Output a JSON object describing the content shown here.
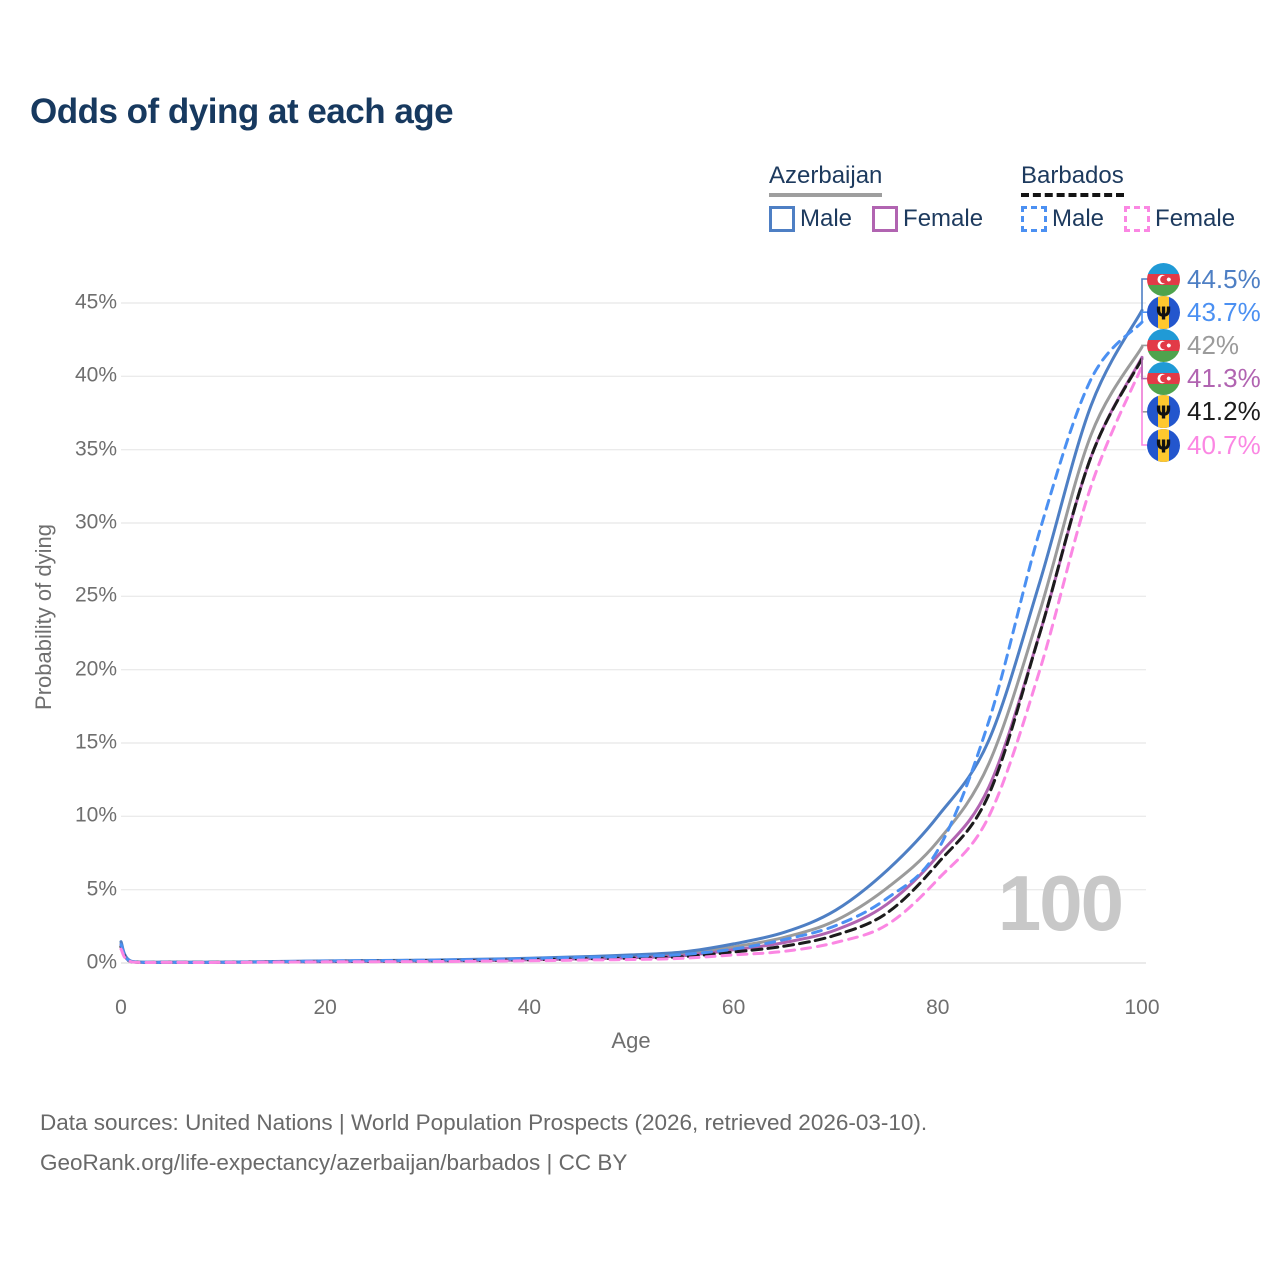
{
  "title": "Odds of dying at each age",
  "watermark": "100",
  "legend": {
    "groups": [
      {
        "label": "Azerbaijan",
        "underline": {
          "color": "#9e9e9e",
          "style": "solid"
        },
        "items": [
          {
            "label": "Male",
            "color": "#4e7fc4",
            "dashed": false
          },
          {
            "label": "Female",
            "color": "#b164b1",
            "dashed": false
          }
        ]
      },
      {
        "label": "Barbados",
        "underline": {
          "color": "#141414",
          "style": "dashed"
        },
        "items": [
          {
            "label": "Male",
            "color": "#4b90f2",
            "dashed": true
          },
          {
            "label": "Female",
            "color": "#fb87e3",
            "dashed": true
          }
        ]
      }
    ]
  },
  "chart_data": {
    "type": "line",
    "title": "Odds of dying at each age",
    "xlabel": "Age",
    "ylabel": "Probability of dying",
    "xlim": [
      0,
      100
    ],
    "ylim": [
      0,
      47.5
    ],
    "grid": true,
    "x_ticks": [
      0,
      20,
      40,
      60,
      80,
      100
    ],
    "y_tick_values": [
      0,
      5,
      10,
      15,
      20,
      25,
      30,
      35,
      40,
      45
    ],
    "y_tick_labels": [
      "0%",
      "5%",
      "10%",
      "15%",
      "20%",
      "25%",
      "30%",
      "35%",
      "40%",
      "45%"
    ],
    "x": [
      0,
      1,
      5,
      10,
      15,
      20,
      25,
      30,
      35,
      40,
      45,
      50,
      55,
      60,
      65,
      70,
      75,
      80,
      85,
      90,
      95,
      100
    ],
    "series": [
      {
        "id": "azerbaijan-total",
        "name": "Azerbaijan",
        "country": "Azerbaijan",
        "sex": "Both",
        "color": "#9b9b9b",
        "dashed": false,
        "values": [
          1.35,
          0.1,
          0.05,
          0.05,
          0.08,
          0.11,
          0.14,
          0.16,
          0.2,
          0.26,
          0.34,
          0.45,
          0.62,
          1.1,
          1.75,
          2.9,
          5.1,
          8.3,
          13.6,
          24.0,
          36.0,
          42.0
        ],
        "end_value": "42%"
      },
      {
        "id": "azerbaijan-female",
        "name": "Azerbaijan Female",
        "country": "Azerbaijan",
        "sex": "Female",
        "color": "#b164b1",
        "dashed": false,
        "values": [
          1.2,
          0.09,
          0.05,
          0.05,
          0.07,
          0.09,
          0.11,
          0.13,
          0.16,
          0.21,
          0.28,
          0.36,
          0.5,
          0.9,
          1.4,
          2.25,
          4.0,
          7.3,
          12.0,
          22.5,
          34.5,
          41.3
        ],
        "end_value": "41.3%"
      },
      {
        "id": "azerbaijan-male",
        "name": "Azerbaijan Male",
        "country": "Azerbaijan",
        "sex": "Male",
        "color": "#4e7fc4",
        "dashed": false,
        "values": [
          1.45,
          0.12,
          0.06,
          0.06,
          0.1,
          0.14,
          0.17,
          0.2,
          0.25,
          0.32,
          0.42,
          0.55,
          0.75,
          1.3,
          2.1,
          3.6,
          6.3,
          10.0,
          15.2,
          26.0,
          38.0,
          44.5
        ],
        "end_value": "44.5%"
      },
      {
        "id": "barbados-total",
        "name": "Barbados",
        "country": "Barbados",
        "sex": "Both",
        "color": "#1c1c1c",
        "dashed": true,
        "dash": "10 6",
        "values": [
          1.1,
          0.09,
          0.05,
          0.05,
          0.08,
          0.1,
          0.12,
          0.14,
          0.17,
          0.22,
          0.28,
          0.33,
          0.43,
          0.75,
          1.15,
          1.9,
          3.4,
          6.8,
          11.5,
          22.5,
          34.5,
          41.2
        ],
        "end_value": "41.2%"
      },
      {
        "id": "barbados-male",
        "name": "Barbados Male",
        "country": "Barbados",
        "sex": "Male",
        "color": "#4b90f2",
        "dashed": true,
        "dash": "9 7",
        "values": [
          1.25,
          0.1,
          0.05,
          0.05,
          0.09,
          0.13,
          0.16,
          0.19,
          0.23,
          0.3,
          0.38,
          0.45,
          0.58,
          0.95,
          1.6,
          2.55,
          4.4,
          7.7,
          16.5,
          29.5,
          39.8,
          43.7
        ],
        "end_value": "43.7%"
      },
      {
        "id": "barbados-female",
        "name": "Barbados Female",
        "country": "Barbados",
        "sex": "Female",
        "color": "#fb87e3",
        "dashed": true,
        "dash": "9 7",
        "values": [
          0.95,
          0.08,
          0.04,
          0.04,
          0.06,
          0.08,
          0.09,
          0.1,
          0.12,
          0.15,
          0.2,
          0.24,
          0.32,
          0.55,
          0.8,
          1.4,
          2.6,
          5.7,
          10.0,
          20.0,
          32.5,
          40.7
        ],
        "end_value": "40.7%"
      }
    ]
  },
  "end_labels": [
    {
      "value": "44.5%",
      "color": "#4e7fc4",
      "flag": "azerbaijan",
      "series": "azerbaijan-male",
      "pct": 44.5
    },
    {
      "value": "43.7%",
      "color": "#4b90f2",
      "flag": "barbados",
      "series": "barbados-male",
      "pct": 43.7
    },
    {
      "value": "42%",
      "color": "#9b9b9b",
      "flag": "azerbaijan",
      "series": "azerbaijan-total",
      "pct": 42
    },
    {
      "value": "41.3%",
      "color": "#b164b1",
      "flag": "azerbaijan",
      "series": "azerbaijan-female",
      "pct": 41.3
    },
    {
      "value": "41.2%",
      "color": "#1c1c1c",
      "flag": "barbados",
      "series": "barbados-total",
      "pct": 41.2
    },
    {
      "value": "40.7%",
      "color": "#fb87e3",
      "flag": "barbados",
      "series": "barbados-female",
      "pct": 40.7
    }
  ],
  "footer": {
    "line1": "Data sources: United Nations | World Population Prospects (2026, retrieved 2026-03-10).",
    "line2": "GeoRank.org/life-expectancy/azerbaijan/barbados | CC BY"
  },
  "flags": {
    "azerbaijan": {
      "blue": "#209ad6",
      "red": "#e23a47",
      "green": "#4fa34d"
    },
    "barbados": {
      "blue": "#2356cd",
      "gold": "#ffc82e",
      "trident": "#111111"
    }
  }
}
